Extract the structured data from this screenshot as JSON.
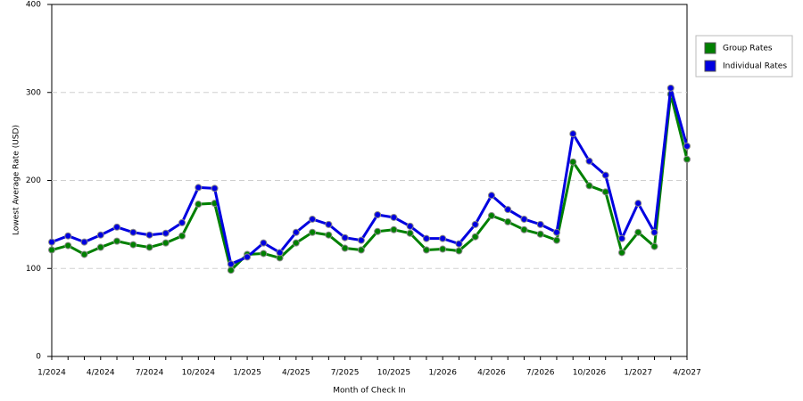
{
  "chart_data": {
    "type": "line",
    "x_label": "Month of Check In",
    "y_label": "Lowest Average Rate (USD)",
    "categories": [
      "1/2024",
      null,
      null,
      "4/2024",
      null,
      null,
      "7/2024",
      null,
      null,
      "10/2024",
      null,
      null,
      "1/2025",
      null,
      null,
      "4/2025",
      null,
      null,
      "7/2025",
      null,
      null,
      "10/2025",
      null,
      null,
      "1/2026",
      null,
      null,
      "4/2026",
      null,
      null,
      "7/2026",
      null,
      null,
      "10/2026",
      null,
      null,
      "1/2027",
      null,
      null,
      "4/2027"
    ],
    "series": [
      {
        "name": "Group Rates",
        "color": "#008000",
        "values": [
          121,
          126,
          116,
          124,
          131,
          127,
          124,
          129,
          137,
          173,
          174,
          98,
          116,
          117,
          112,
          129,
          141,
          138,
          123,
          121,
          142,
          144,
          140,
          121,
          122,
          120,
          136,
          160,
          153,
          144,
          139,
          132,
          221,
          194,
          187,
          118,
          141,
          125,
          298,
          224
        ]
      },
      {
        "name": "Individual Rates",
        "color": "#0000e0",
        "values": [
          130,
          137,
          130,
          138,
          147,
          141,
          138,
          140,
          152,
          192,
          191,
          105,
          113,
          129,
          118,
          141,
          156,
          150,
          135,
          132,
          161,
          158,
          148,
          134,
          134,
          128,
          150,
          183,
          167,
          156,
          150,
          141,
          253,
          222,
          206,
          134,
          174,
          141,
          305,
          239
        ]
      }
    ],
    "ylim": [
      0,
      400
    ],
    "yticks": [
      0,
      100,
      200,
      300,
      400
    ],
    "grid": true,
    "legend": "right"
  }
}
